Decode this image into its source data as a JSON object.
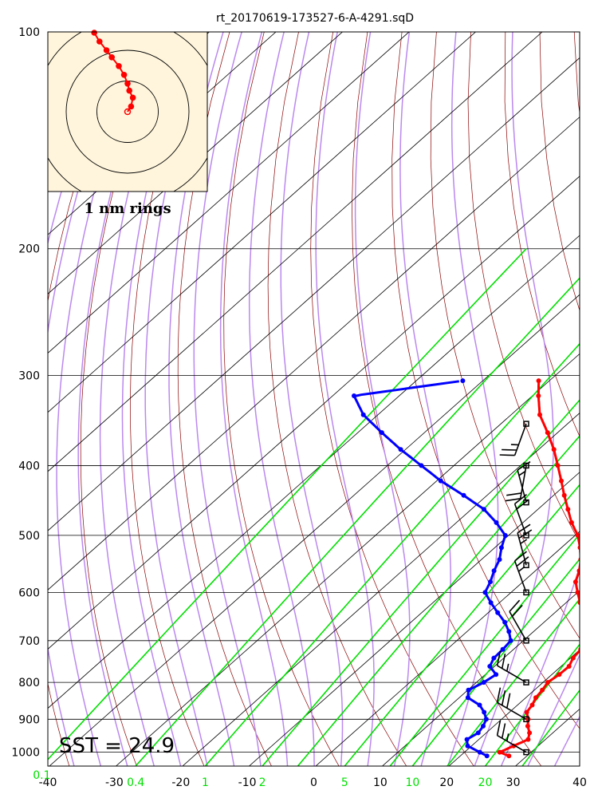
{
  "chart_data": {
    "type": "skew-t sounding",
    "title": "rt_20170619-173527-6-A-4291.sqD",
    "annotation": "SST = 24.9",
    "hodograph_label": "1 nm rings",
    "x_ticks": [
      "-40",
      "-30",
      "-20",
      "-10",
      "0",
      "10",
      "20",
      "30",
      "40"
    ],
    "x_tick_values": [
      -40,
      -30,
      -20,
      -10,
      0,
      10,
      20,
      30,
      40
    ],
    "y_ticks": [
      "100",
      "200",
      "300",
      "400",
      "500",
      "600",
      "700",
      "800",
      "900",
      "1000"
    ],
    "y_tick_values": [
      100,
      200,
      300,
      400,
      500,
      600,
      700,
      800,
      900,
      1000
    ],
    "mixing_ratio_labels": [
      "0.1",
      "0.4",
      "1",
      "2",
      "5",
      "10",
      "20"
    ],
    "mixing_ratio_values": [
      0.1,
      0.4,
      1,
      2,
      5,
      10,
      20
    ],
    "xlim": [
      -40,
      40
    ],
    "ylim": [
      1050,
      100
    ],
    "y_scale": "log",
    "grid": true,
    "colors": {
      "temperature": "#ff0000",
      "dewpoint": "#0000ff",
      "mixing_ratio": "#00e000",
      "moist_adiabat": "#bb88ee",
      "dry_adiabat": "#8b0000",
      "isotherm": "#000000",
      "hodograph_bg": "#fff5dc",
      "wind_barb": "#000000"
    },
    "series": [
      {
        "name": "Temperature",
        "p": [
          1012,
          1000,
          980,
          960,
          940,
          920,
          900,
          880,
          860,
          840,
          820,
          800,
          780,
          760,
          740,
          720,
          700,
          680,
          660,
          640,
          620,
          600,
          580,
          560,
          540,
          520,
          500,
          480,
          460,
          440,
          420,
          400,
          380,
          360,
          340,
          320,
          305
        ],
        "t": [
          27.3,
          25.3,
          26.3,
          27.4,
          26.5,
          25.1,
          24.0,
          22.6,
          22.2,
          21.5,
          21.2,
          20.7,
          21.1,
          21.2,
          20.4,
          20.1,
          19.0,
          17.7,
          16.0,
          14.3,
          12.1,
          10.0,
          7.9,
          6.6,
          4.9,
          2.8,
          0.4,
          -2.7,
          -5.5,
          -8.4,
          -11.3,
          -14.4,
          -17.7,
          -21.5,
          -25.7,
          -29.1,
          -31.6
        ]
      },
      {
        "name": "Dewpoint",
        "p": [
          1012,
          1000,
          980,
          960,
          940,
          920,
          900,
          880,
          860,
          840,
          820,
          800,
          780,
          760,
          740,
          720,
          700,
          680,
          660,
          640,
          620,
          600,
          580,
          560,
          540,
          520,
          500,
          480,
          460,
          440,
          420,
          400,
          380,
          360,
          340,
          320,
          305
        ],
        "t": [
          24.0,
          22.3,
          19.4,
          18.2,
          18.8,
          18.4,
          17.7,
          16.2,
          14.3,
          11.3,
          10.1,
          11.1,
          11.6,
          9.3,
          8.5,
          8.4,
          8.1,
          6.3,
          4.1,
          1.4,
          -1.3,
          -3.9,
          -4.9,
          -6.2,
          -7.3,
          -9.0,
          -10.5,
          -14.0,
          -18.1,
          -23.5,
          -29.4,
          -34.9,
          -40.7,
          -46.4,
          -52.2,
          -56.8,
          -43.0
        ]
      }
    ],
    "wind_barbs": [
      {
        "p": 1000,
        "dir_deg": 300,
        "speed_kt": 25
      },
      {
        "p": 900,
        "dir_deg": 300,
        "speed_kt": 30
      },
      {
        "p": 800,
        "dir_deg": 300,
        "speed_kt": 25
      },
      {
        "p": 700,
        "dir_deg": 330,
        "speed_kt": 20
      },
      {
        "p": 600,
        "dir_deg": 340,
        "speed_kt": 25
      },
      {
        "p": 550,
        "dir_deg": 345,
        "speed_kt": 25
      },
      {
        "p": 500,
        "dir_deg": 340,
        "speed_kt": 20
      },
      {
        "p": 450,
        "dir_deg": 345,
        "speed_kt": 15
      },
      {
        "p": 400,
        "dir_deg": 190,
        "speed_kt": 20
      },
      {
        "p": 350,
        "dir_deg": 200,
        "speed_kt": 25
      }
    ],
    "hodograph": {
      "u_km": [
        0,
        0.2,
        0.3,
        0.1,
        0.0,
        -0.2,
        -0.5,
        -0.9,
        -1.2,
        -1.6,
        -1.9
      ],
      "v_km": [
        0,
        0.3,
        0.8,
        1.2,
        1.6,
        2.1,
        2.6,
        3.1,
        3.5,
        4.0,
        4.5
      ]
    }
  }
}
